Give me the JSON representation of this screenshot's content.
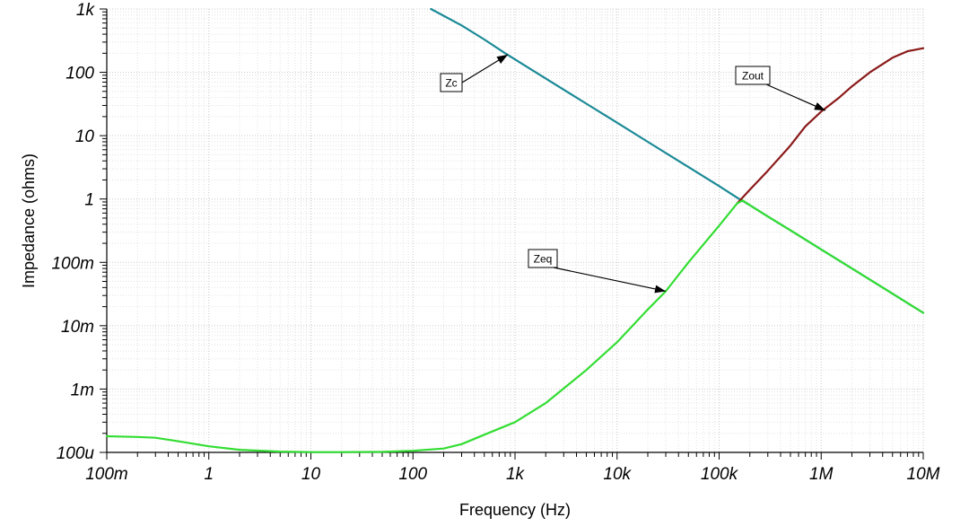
{
  "chart_data": {
    "type": "line",
    "xlabel": "Frequency (Hz)",
    "ylabel": "Impedance (ohms)",
    "x_scale": "log",
    "y_scale": "log",
    "xlim": [
      0.1,
      10000000
    ],
    "ylim": [
      0.0001,
      1000
    ],
    "grid": true,
    "x_ticks": [
      {
        "value": 0.1,
        "label": "100m"
      },
      {
        "value": 1,
        "label": "1"
      },
      {
        "value": 10,
        "label": "10"
      },
      {
        "value": 100,
        "label": "100"
      },
      {
        "value": 1000,
        "label": "1k"
      },
      {
        "value": 10000,
        "label": "10k"
      },
      {
        "value": 100000,
        "label": "100k"
      },
      {
        "value": 1000000,
        "label": "1M"
      },
      {
        "value": 10000000,
        "label": "10M"
      }
    ],
    "y_ticks": [
      {
        "value": 0.0001,
        "label": "100u"
      },
      {
        "value": 0.001,
        "label": "1m"
      },
      {
        "value": 0.01,
        "label": "10m"
      },
      {
        "value": 0.1,
        "label": "100m"
      },
      {
        "value": 1,
        "label": "1"
      },
      {
        "value": 10,
        "label": "10"
      },
      {
        "value": 100,
        "label": "100"
      },
      {
        "value": 1000,
        "label": "1k"
      }
    ],
    "series": [
      {
        "name": "Zc",
        "color": "#1a8a96",
        "x": [
          150,
          300,
          500,
          800,
          1000,
          2000,
          5000,
          10000,
          20000,
          50000,
          100000,
          150000,
          200000,
          300000,
          500000,
          1000000,
          2000000,
          5000000,
          10000000
        ],
        "y": [
          1000,
          550,
          330,
          200,
          160,
          80,
          32,
          16,
          8,
          3.2,
          1.6,
          1.05,
          0.8,
          0.53,
          0.32,
          0.16,
          0.08,
          0.032,
          0.016
        ]
      },
      {
        "name": "Zout",
        "color": "#8b1a1a",
        "x": [
          150000,
          200000,
          300000,
          500000,
          700000,
          1000000,
          1500000,
          2000000,
          3000000,
          5000000,
          7000000,
          10000000
        ],
        "y": [
          0.85,
          1.4,
          2.8,
          7,
          14,
          24,
          40,
          60,
          100,
          170,
          215,
          240
        ]
      },
      {
        "name": "Zeq",
        "color": "#33dd33",
        "x": [
          0.1,
          0.2,
          0.3,
          0.5,
          1,
          2,
          5,
          10,
          20,
          50,
          100,
          200,
          300,
          500,
          1000,
          2000,
          5000,
          10000,
          20000,
          30000,
          50000,
          100000,
          150000,
          170000,
          200000,
          300000,
          500000,
          1000000,
          2000000,
          5000000,
          10000000
        ],
        "y": [
          0.00018,
          0.000175,
          0.00017,
          0.00015,
          0.000125,
          0.00011,
          0.000103,
          0.000101,
          0.000101,
          0.000102,
          0.000106,
          0.000115,
          0.000135,
          0.00019,
          0.0003,
          0.0006,
          0.002,
          0.0055,
          0.018,
          0.035,
          0.1,
          0.38,
          0.85,
          0.95,
          0.8,
          0.53,
          0.32,
          0.16,
          0.08,
          0.032,
          0.016
        ]
      }
    ],
    "annotations": [
      {
        "text": "Zc",
        "series": "Zc",
        "point": [
          850,
          190
        ]
      },
      {
        "text": "Zout",
        "series": "Zout",
        "point": [
          1100000,
          25
        ]
      },
      {
        "text": "Zeq",
        "series": "Zeq",
        "point": [
          30000,
          0.035
        ]
      }
    ]
  }
}
